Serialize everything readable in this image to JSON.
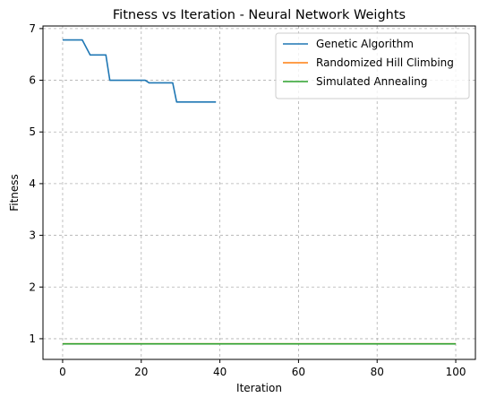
{
  "chart_data": {
    "type": "line",
    "title": "Fitness vs Iteration - Neural Network Weights",
    "xlabel": "Iteration",
    "ylabel": "Fitness",
    "xlim": [
      -5,
      105
    ],
    "ylim": [
      0.6,
      7.05
    ],
    "xticks": [
      0,
      20,
      40,
      60,
      80,
      100
    ],
    "yticks": [
      1,
      2,
      3,
      4,
      5,
      6,
      7
    ],
    "grid": true,
    "legend_position": "top-right",
    "series": [
      {
        "name": "Genetic Algorithm",
        "color": "#1f77b4",
        "x": [
          0,
          5,
          7,
          11,
          12,
          21,
          22,
          28,
          29,
          39
        ],
        "y": [
          6.78,
          6.78,
          6.49,
          6.49,
          6.0,
          6.0,
          5.95,
          5.95,
          5.58,
          5.58
        ]
      },
      {
        "name": "Randomized Hill Climbing",
        "color": "#ff7f0e",
        "x": [
          0,
          100
        ],
        "y": [
          0.9,
          0.9
        ]
      },
      {
        "name": "Simulated Annealing",
        "color": "#2ca02c",
        "x": [
          0,
          100
        ],
        "y": [
          0.9,
          0.9
        ]
      }
    ]
  }
}
